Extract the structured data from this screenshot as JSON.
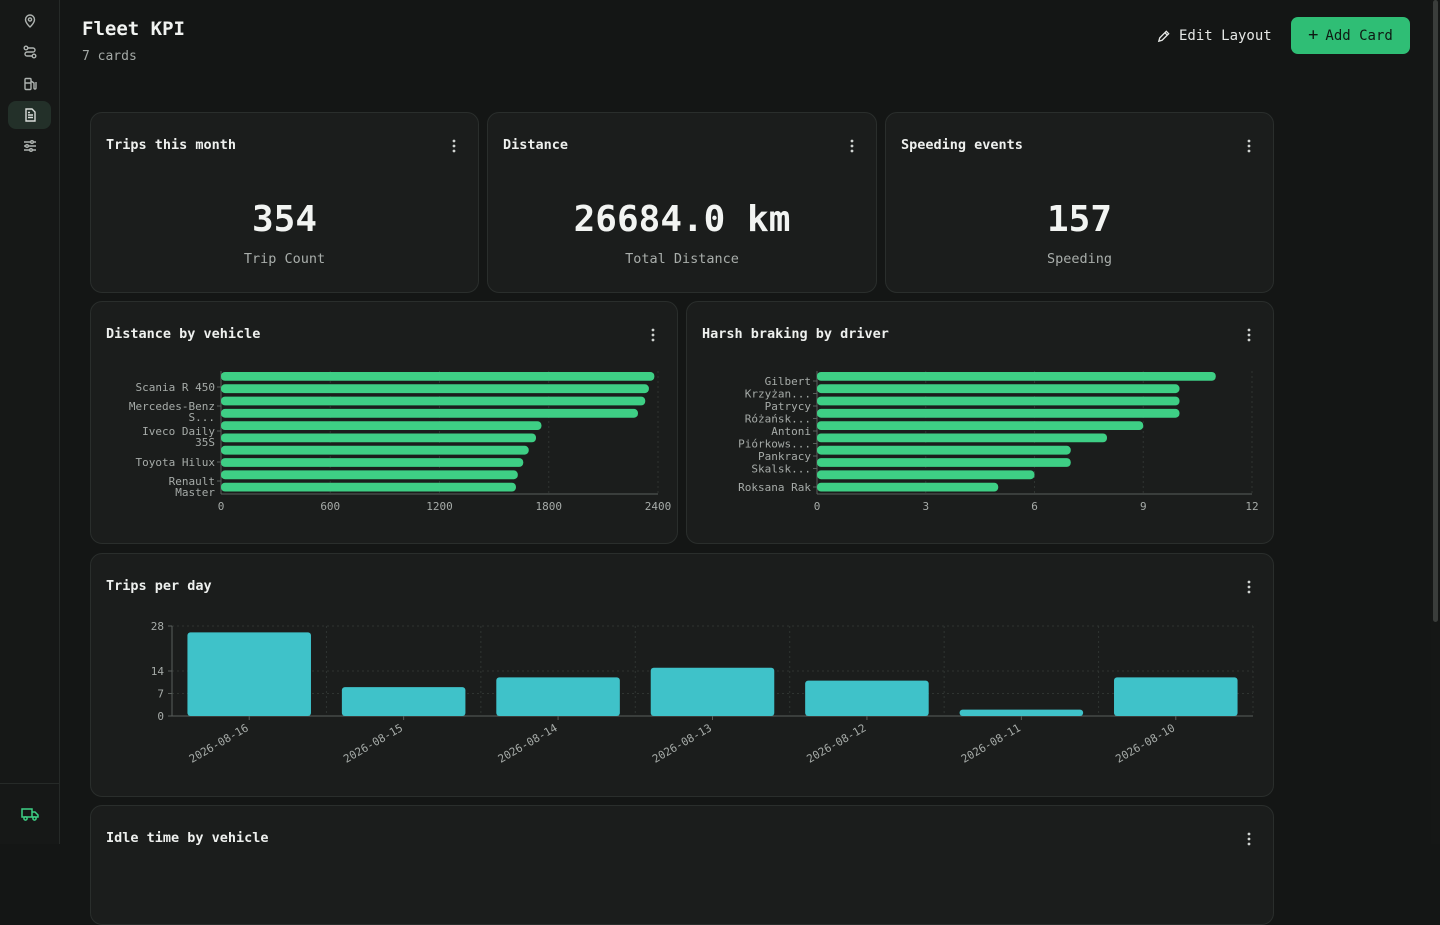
{
  "sidebar": {
    "items": [
      {
        "icon": "map-pin-icon"
      },
      {
        "icon": "route-icon"
      },
      {
        "icon": "fuel-icon"
      },
      {
        "icon": "report-icon",
        "active": true
      },
      {
        "icon": "sliders-icon"
      }
    ],
    "bottom_icon": "truck-icon"
  },
  "header": {
    "title": "Fleet KPI",
    "subtitle": "7 cards",
    "edit_label": "Edit Layout",
    "add_label": "Add Card"
  },
  "kpis": [
    {
      "title": "Trips this month",
      "value": "354",
      "label": "Trip Count"
    },
    {
      "title": "Distance",
      "value": "26684.0 km",
      "label": "Total Distance"
    },
    {
      "title": "Speeding events",
      "value": "157",
      "label": "Speeding"
    }
  ],
  "cards": {
    "distance_by_vehicle": "Distance by vehicle",
    "harsh_braking": "Harsh braking by driver",
    "trips_per_day": "Trips per day",
    "idle_time": "Idle time by vehicle"
  },
  "chart_data": [
    {
      "type": "bar",
      "orientation": "horizontal",
      "title": "Distance by vehicle",
      "color": "#3ecf85",
      "tick_labels": [
        "Scania R 450",
        "Mercedes-Benz S...",
        "Iveco Daily 35S",
        "Toyota Hilux",
        "Renault Master"
      ],
      "values": [
        2380,
        2350,
        2330,
        2290,
        1760,
        1730,
        1690,
        1660,
        1630,
        1620
      ],
      "xticks": [
        0,
        600,
        1200,
        1800,
        2400
      ],
      "xlim": [
        0,
        2400
      ]
    },
    {
      "type": "bar",
      "orientation": "horizontal",
      "title": "Harsh braking by driver",
      "color": "#3ecf85",
      "tick_labels": [
        "Gilbert",
        "Krzyżan...",
        "Patrycy",
        "Różańsk...",
        "Antoni",
        "Piórkows...",
        "Pankracy",
        "Skalsk...",
        "Roksana Rak"
      ],
      "values": [
        11,
        10,
        10,
        10,
        9,
        8,
        7,
        7,
        6,
        5
      ],
      "xticks": [
        0,
        3,
        6,
        9,
        12
      ],
      "xlim": [
        0,
        12
      ]
    },
    {
      "type": "bar",
      "title": "Trips per day",
      "color": "#3fc2c9",
      "categories": [
        "2026-08-16",
        "2026-08-15",
        "2026-08-14",
        "2026-08-13",
        "2026-08-12",
        "2026-08-11",
        "2026-08-10"
      ],
      "values": [
        26,
        9,
        12,
        15,
        11,
        2,
        12
      ],
      "yticks": [
        0,
        7,
        14,
        28
      ],
      "ylim": [
        0,
        28
      ]
    }
  ]
}
